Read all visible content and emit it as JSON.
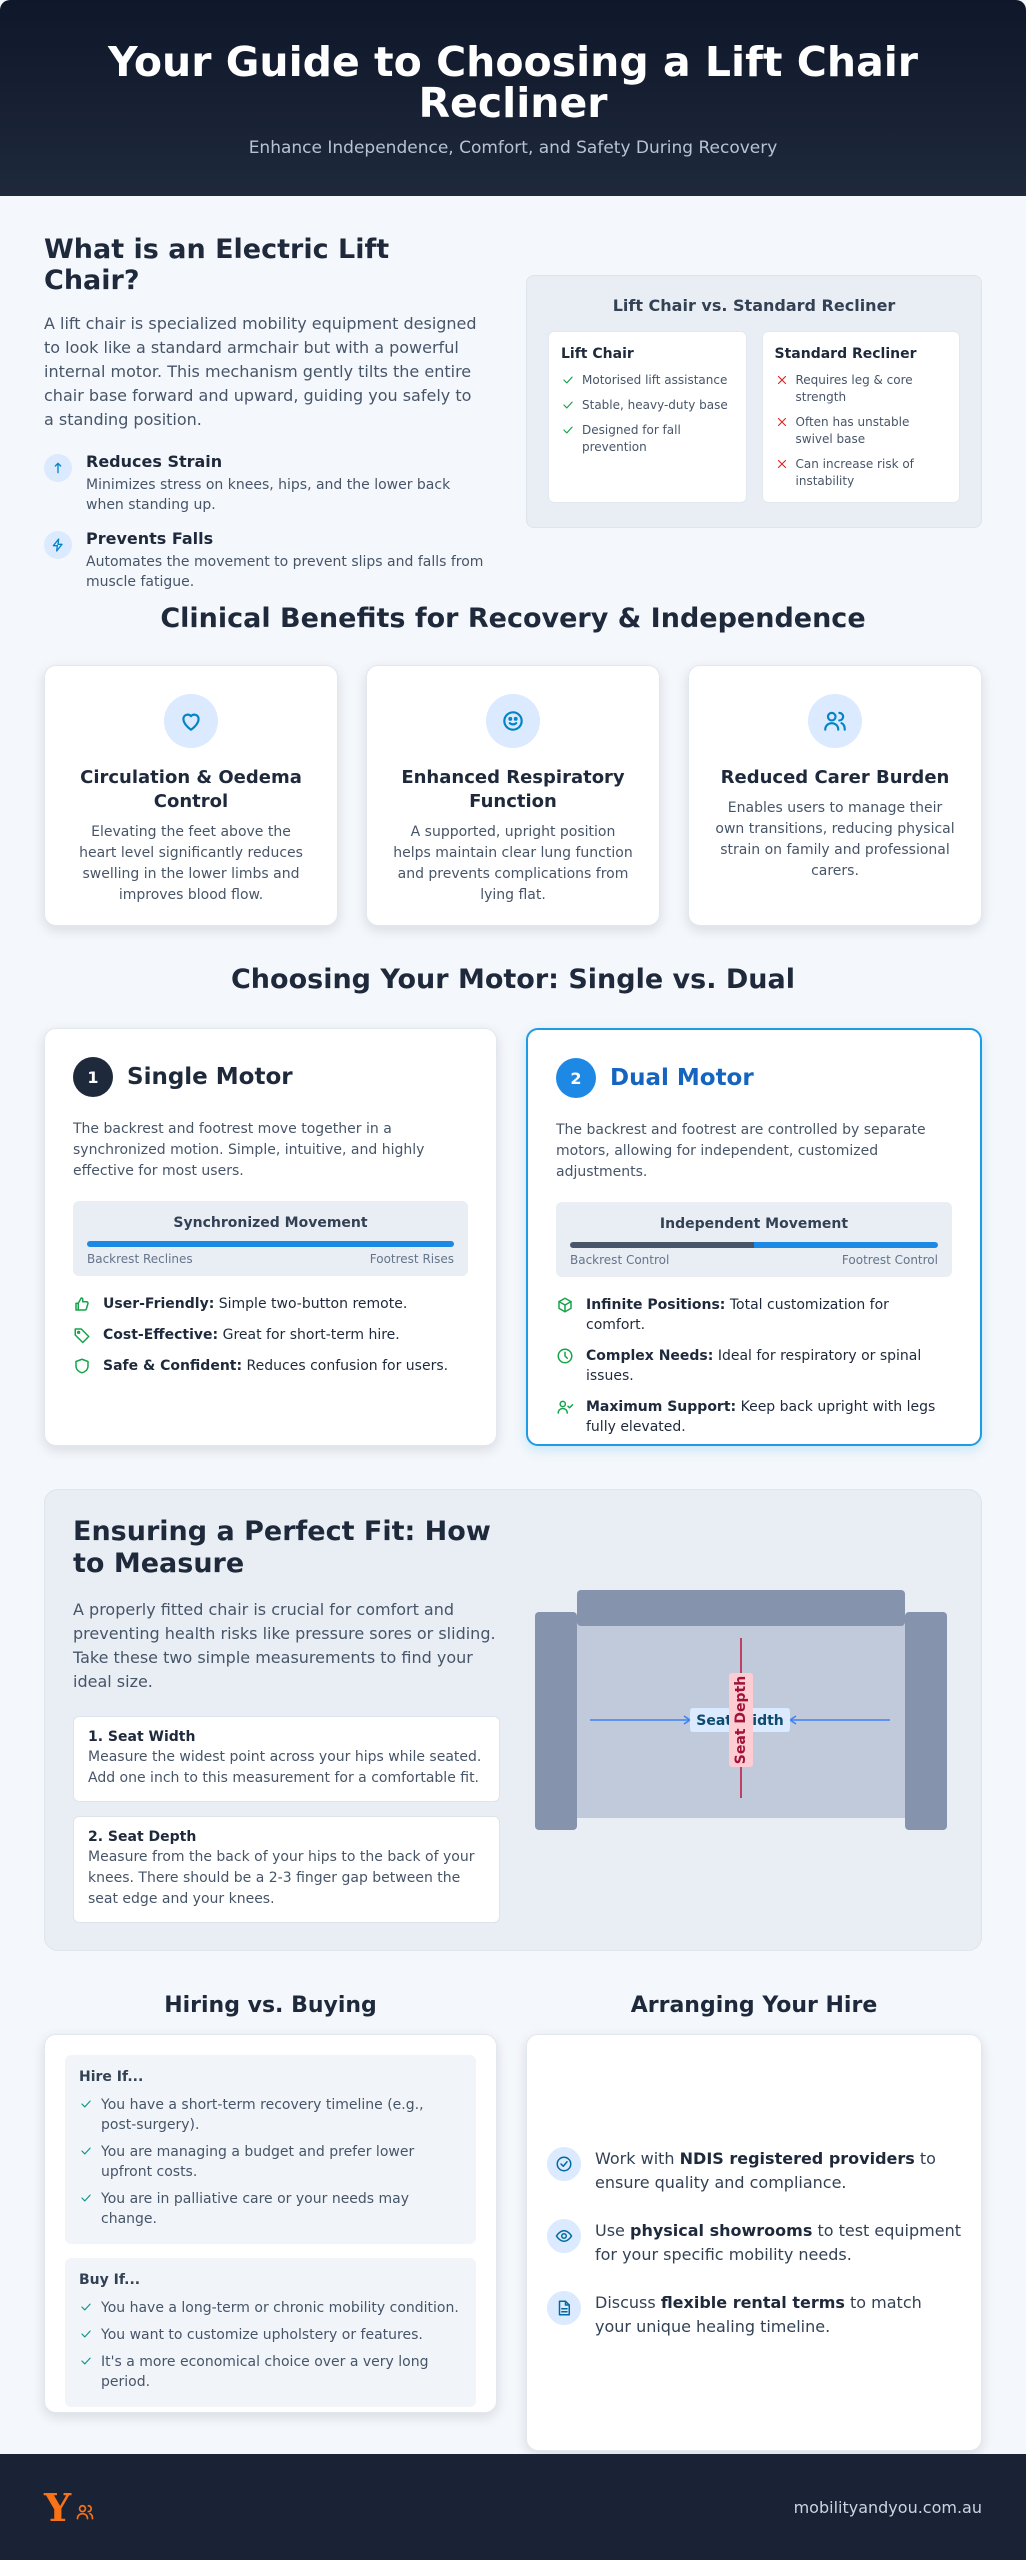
{
  "header": {
    "title": "Your Guide to Choosing a Lift Chair Recliner",
    "subtitle": "Enhance Independence, Comfort, and Safety During Recovery"
  },
  "intro": {
    "title": "What is an Electric Lift Chair?",
    "text": "A lift chair is specialized mobility equipment designed to look like a standard armchair but with a powerful internal motor. This mechanism gently tilts the entire chair base forward and upward, guiding you safely to a standing position.",
    "features": [
      {
        "title": "Reduces Strain",
        "text": "Minimizes stress on knees, hips, and the lower back when standing up."
      },
      {
        "title": "Prevents Falls",
        "text": "Automates the movement to prevent slips and falls from muscle fatigue."
      }
    ],
    "comparison": {
      "title": "Lift Chair vs. Standard Recliner",
      "columns": [
        {
          "title": "Lift Chair",
          "items": [
            "Motorised lift assistance",
            "Stable, heavy-duty base",
            "Designed for fall prevention"
          ]
        },
        {
          "title": "Standard Recliner",
          "items": [
            "Requires leg & core strength",
            "Often has unstable swivel base",
            "Can increase risk of instability"
          ]
        }
      ]
    }
  },
  "benefits": {
    "title": "Clinical Benefits for Recovery & Independence",
    "cards": [
      {
        "title": "Circulation & Oedema Control",
        "text": "Elevating the feet above the heart level significantly reduces swelling in the lower limbs and improves blood flow."
      },
      {
        "title": "Enhanced Respiratory Function",
        "text": "A supported, upright position helps maintain clear lung function and prevents complications from lying flat."
      },
      {
        "title": "Reduced Carer Burden",
        "text": "Enables users to manage their own transitions, reducing physical strain on family and professional carers."
      }
    ]
  },
  "motor": {
    "title": "Choosing Your Motor: Single vs. Dual",
    "options": [
      {
        "number": 1,
        "title": "Single Motor",
        "text": "The backrest and footrest move together in a synchronized motion. Simple, intuitive, and highly effective for most users.",
        "diagram": {
          "title": "Synchronized Movement",
          "left": "Backrest Reclines",
          "right": "Footrest Rises"
        },
        "features": [
          {
            "label": "User-Friendly:",
            "text": "Simple two-button remote."
          },
          {
            "label": "Cost-Effective:",
            "text": "Great for short-term hire."
          },
          {
            "label": "Safe & Confident:",
            "text": "Reduces confusion for users."
          }
        ]
      },
      {
        "number": 2,
        "title": "Dual Motor",
        "text": "The backrest and footrest are controlled by separate motors, allowing for independent, customized adjustments.",
        "diagram": {
          "title": "Independent Movement",
          "left": "Backrest Control",
          "right": "Footrest Control"
        },
        "features": [
          {
            "label": "Infinite Positions:",
            "text": "Total customization for comfort."
          },
          {
            "label": "Complex Needs:",
            "text": "Ideal for respiratory or spinal issues."
          },
          {
            "label": "Maximum Support:",
            "text": "Keep back upright with legs fully elevated."
          }
        ]
      }
    ]
  },
  "measure": {
    "title": "Ensuring a Perfect Fit: How to Measure",
    "text": "A properly fitted chair is crucial for comfort and preventing health risks like pressure sores or sliding. Take these two simple measurements to find your ideal size.",
    "steps": [
      {
        "title": "1. Seat Width",
        "text": "Measure the widest point across your hips while seated. Add one inch to this measurement for a comfortable fit."
      },
      {
        "title": "2. Seat Depth",
        "text": "Measure from the back of your hips to the back of your knees. There should be a 2-3 finger gap between the seat edge and your knees."
      }
    ],
    "diagram": {
      "width_label": "Seat Width",
      "depth_label": "Seat Depth"
    }
  },
  "hiring": {
    "title": "Hiring vs. Buying",
    "groups": [
      {
        "title": "Hire If...",
        "items": [
          "You have a short-term recovery timeline (e.g., post-surgery).",
          "You are managing a budget and prefer lower upfront costs.",
          "You are in palliative care or your needs may change."
        ]
      },
      {
        "title": "Buy If...",
        "items": [
          "You have a long-term or chronic mobility condition.",
          "You want to customize upholstery or features.",
          "It's a more economical choice over a very long period."
        ]
      }
    ]
  },
  "arranging": {
    "title": "Arranging Your Hire",
    "items": [
      {
        "pre": "Work with",
        "bold": "NDIS registered providers",
        "post": "to ensure quality and compliance."
      },
      {
        "pre": "Use",
        "bold": "physical showrooms",
        "post": "to test equipment for your specific mobility needs."
      },
      {
        "pre": "Discuss",
        "bold": "flexible rental terms",
        "post": "to match your unique healing timeline."
      }
    ]
  },
  "footer": {
    "logo": "Y",
    "url": "mobilityandyou.com.au"
  }
}
